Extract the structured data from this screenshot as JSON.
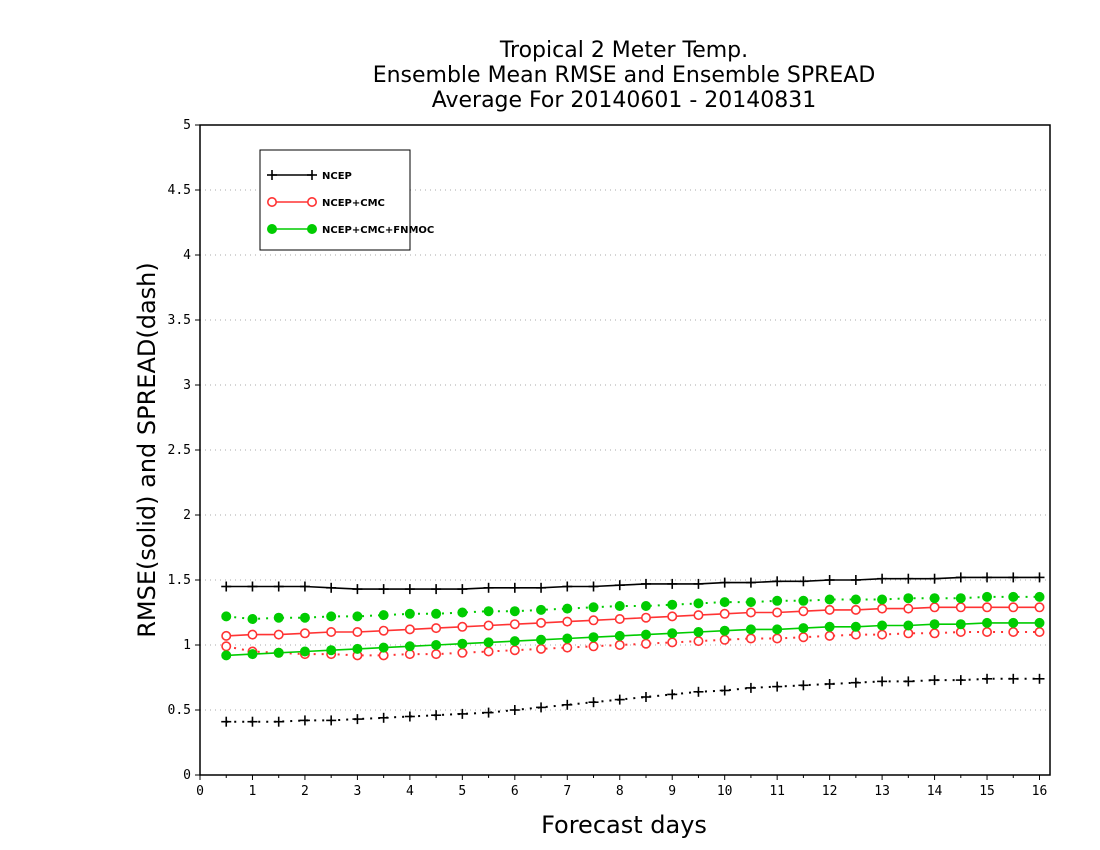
{
  "chart_data": {
    "type": "line",
    "title_lines": [
      "Tropical 2 Meter Temp.",
      "Ensemble Mean RMSE and Ensemble SPREAD",
      "Average For 20140601 - 20140831"
    ],
    "xlabel": "Forecast days",
    "ylabel": "RMSE(solid) and SPREAD(dash)",
    "xlim": [
      0,
      16.2
    ],
    "ylim": [
      0,
      5
    ],
    "xticks": [
      "0",
      "1",
      "2",
      "3",
      "4",
      "5",
      "6",
      "7",
      "8",
      "9",
      "10",
      "11",
      "12",
      "13",
      "14",
      "15",
      "16"
    ],
    "yticks": [
      "0",
      "0.5",
      "1",
      "1.5",
      "2",
      "2.5",
      "3",
      "3.5",
      "4",
      "4.5",
      "5"
    ],
    "grid": "horizontal dotted",
    "legend_position": "top-left",
    "x": [
      0.5,
      1,
      1.5,
      2,
      2.5,
      3,
      3.5,
      4,
      4.5,
      5,
      5.5,
      6,
      6.5,
      7,
      7.5,
      8,
      8.5,
      9,
      9.5,
      10,
      10.5,
      11,
      11.5,
      12,
      12.5,
      13,
      13.5,
      14,
      14.5,
      15,
      15.5,
      16
    ],
    "series": [
      {
        "name": "NCEP",
        "color": "#000000",
        "marker": "plus",
        "rmse": [
          1.45,
          1.45,
          1.45,
          1.45,
          1.44,
          1.43,
          1.43,
          1.43,
          1.43,
          1.43,
          1.44,
          1.44,
          1.44,
          1.45,
          1.45,
          1.46,
          1.47,
          1.47,
          1.47,
          1.48,
          1.48,
          1.49,
          1.49,
          1.5,
          1.5,
          1.51,
          1.51,
          1.51,
          1.52,
          1.52,
          1.52,
          1.52
        ],
        "spread": [
          0.41,
          0.41,
          0.41,
          0.42,
          0.42,
          0.43,
          0.44,
          0.45,
          0.46,
          0.47,
          0.48,
          0.5,
          0.52,
          0.54,
          0.56,
          0.58,
          0.6,
          0.62,
          0.64,
          0.65,
          0.67,
          0.68,
          0.69,
          0.7,
          0.71,
          0.72,
          0.72,
          0.73,
          0.73,
          0.74,
          0.74,
          0.74
        ]
      },
      {
        "name": "NCEP+CMC",
        "color": "#ff3333",
        "marker": "open-circle",
        "rmse": [
          1.07,
          1.08,
          1.08,
          1.09,
          1.1,
          1.1,
          1.11,
          1.12,
          1.13,
          1.14,
          1.15,
          1.16,
          1.17,
          1.18,
          1.19,
          1.2,
          1.21,
          1.22,
          1.23,
          1.24,
          1.25,
          1.25,
          1.26,
          1.27,
          1.27,
          1.28,
          1.28,
          1.29,
          1.29,
          1.29,
          1.29,
          1.29
        ],
        "spread": [
          0.99,
          0.95,
          0.94,
          0.93,
          0.93,
          0.92,
          0.92,
          0.93,
          0.93,
          0.94,
          0.95,
          0.96,
          0.97,
          0.98,
          0.99,
          1.0,
          1.01,
          1.02,
          1.03,
          1.04,
          1.05,
          1.05,
          1.06,
          1.07,
          1.08,
          1.08,
          1.09,
          1.09,
          1.1,
          1.1,
          1.1,
          1.1
        ]
      },
      {
        "name": "NCEP+CMC+FNMOC",
        "color": "#00cc00",
        "marker": "filled-circle",
        "rmse": [
          0.92,
          0.93,
          0.94,
          0.95,
          0.96,
          0.97,
          0.98,
          0.99,
          1.0,
          1.01,
          1.02,
          1.03,
          1.04,
          1.05,
          1.06,
          1.07,
          1.08,
          1.09,
          1.1,
          1.11,
          1.12,
          1.12,
          1.13,
          1.14,
          1.14,
          1.15,
          1.15,
          1.16,
          1.16,
          1.17,
          1.17,
          1.17
        ],
        "spread": [
          1.22,
          1.2,
          1.21,
          1.21,
          1.22,
          1.22,
          1.23,
          1.24,
          1.24,
          1.25,
          1.26,
          1.26,
          1.27,
          1.28,
          1.29,
          1.3,
          1.3,
          1.31,
          1.32,
          1.33,
          1.33,
          1.34,
          1.34,
          1.35,
          1.35,
          1.35,
          1.36,
          1.36,
          1.36,
          1.37,
          1.37,
          1.37
        ]
      }
    ]
  }
}
